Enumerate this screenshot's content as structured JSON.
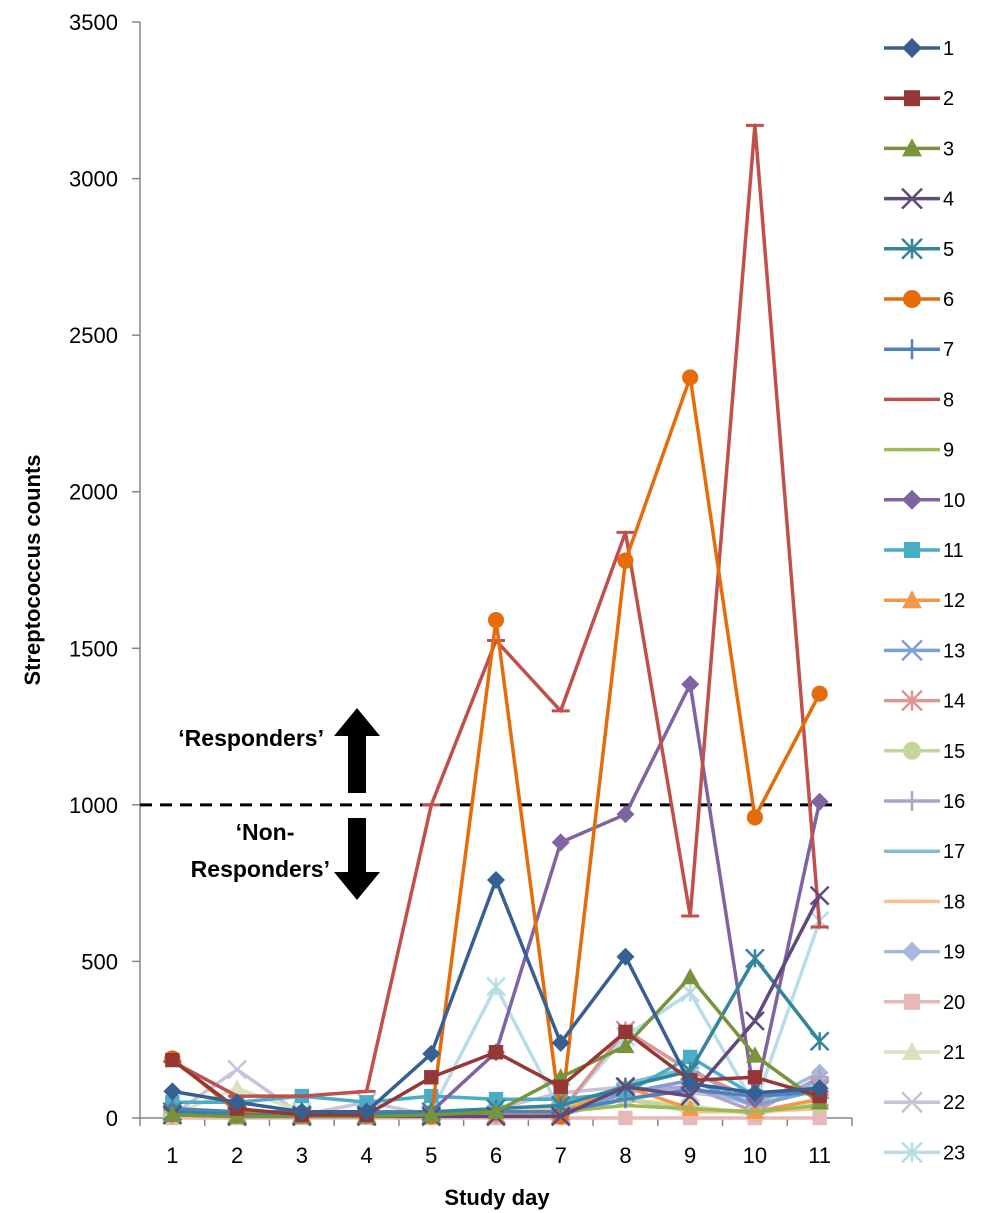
{
  "chart_data": {
    "type": "line",
    "xlabel": "Study day",
    "ylabel": "Streptococcus counts",
    "x": [
      1,
      2,
      3,
      4,
      5,
      6,
      7,
      8,
      9,
      10,
      11
    ],
    "yticks": [
      0,
      500,
      1000,
      1500,
      2000,
      2500,
      3000,
      3500
    ],
    "ylim": [
      0,
      3500
    ],
    "grid": false,
    "legend_position": "right",
    "threshold": {
      "value": 1000,
      "style": "dashed"
    },
    "annotations": {
      "responders": "‘Responders’",
      "non_responders_line1": "‘Non-",
      "non_responders_line2": "Responders’"
    },
    "series": [
      {
        "name": "1",
        "color": "#376092",
        "marker": "diamond",
        "values": [
          85,
          50,
          20,
          20,
          205,
          760,
          240,
          515,
          110,
          80,
          95
        ]
      },
      {
        "name": "2",
        "color": "#953735",
        "marker": "square",
        "values": [
          185,
          30,
          10,
          10,
          130,
          210,
          100,
          275,
          120,
          130,
          70
        ]
      },
      {
        "name": "3",
        "color": "#77933C",
        "marker": "triangle",
        "values": [
          10,
          5,
          5,
          5,
          10,
          20,
          130,
          230,
          450,
          200,
          50
        ]
      },
      {
        "name": "4",
        "color": "#604A7B",
        "marker": "x",
        "values": [
          10,
          5,
          5,
          5,
          5,
          5,
          5,
          100,
          70,
          310,
          710
        ]
      },
      {
        "name": "5",
        "color": "#31859C",
        "marker": "star",
        "values": [
          20,
          10,
          10,
          10,
          20,
          30,
          40,
          100,
          150,
          510,
          245
        ]
      },
      {
        "name": "6",
        "color": "#E46C0A",
        "marker": "circle",
        "values": [
          190,
          20,
          10,
          10,
          5,
          1590,
          5,
          1780,
          2365,
          960,
          1355
        ]
      },
      {
        "name": "7",
        "color": "#4F81BD",
        "marker": "plus",
        "values": [
          30,
          20,
          20,
          20,
          20,
          20,
          20,
          60,
          90,
          70,
          85
        ]
      },
      {
        "name": "8",
        "color": "#C0504D",
        "marker": "dash",
        "values": [
          180,
          70,
          70,
          85,
          1000,
          1525,
          1300,
          1870,
          645,
          3170,
          610
        ]
      },
      {
        "name": "9",
        "color": "#9BBB59",
        "marker": "dash",
        "values": [
          20,
          20,
          20,
          20,
          20,
          20,
          20,
          40,
          30,
          20,
          40
        ]
      },
      {
        "name": "10",
        "color": "#8064A2",
        "marker": "diamond",
        "values": [
          25,
          20,
          20,
          20,
          20,
          210,
          880,
          970,
          1385,
          60,
          1010
        ]
      },
      {
        "name": "11",
        "color": "#4BACC6",
        "marker": "square",
        "values": [
          50,
          50,
          70,
          50,
          70,
          60,
          60,
          80,
          195,
          70,
          80
        ]
      },
      {
        "name": "12",
        "color": "#F79646",
        "marker": "triangle",
        "values": [
          10,
          10,
          10,
          10,
          10,
          10,
          20,
          100,
          30,
          20,
          60
        ]
      },
      {
        "name": "13",
        "color": "#7F9FD3",
        "marker": "x",
        "values": [
          10,
          10,
          10,
          10,
          10,
          10,
          10,
          80,
          120,
          40,
          90
        ]
      },
      {
        "name": "14",
        "color": "#D99694",
        "marker": "star",
        "values": [
          10,
          10,
          10,
          10,
          10,
          10,
          20,
          280,
          150,
          60,
          100
        ]
      },
      {
        "name": "15",
        "color": "#C3D69B",
        "marker": "circle",
        "values": [
          10,
          10,
          10,
          10,
          10,
          30,
          40,
          60,
          30,
          20,
          40
        ]
      },
      {
        "name": "16",
        "color": "#B3A2C7",
        "marker": "plus",
        "values": [
          10,
          10,
          10,
          10,
          10,
          10,
          10,
          90,
          100,
          20,
          130
        ]
      },
      {
        "name": "17",
        "color": "#7FBFD4",
        "marker": "dash",
        "values": [
          10,
          10,
          10,
          10,
          10,
          10,
          10,
          110,
          160,
          30,
          120
        ]
      },
      {
        "name": "18",
        "color": "#FAC090",
        "marker": "dash",
        "values": [
          5,
          5,
          5,
          5,
          5,
          10,
          30,
          60,
          20,
          20,
          30
        ]
      },
      {
        "name": "19",
        "color": "#A6B9DD",
        "marker": "diamond",
        "values": [
          10,
          10,
          10,
          10,
          10,
          10,
          10,
          60,
          100,
          40,
          145
        ]
      },
      {
        "name": "20",
        "color": "#E6B9B8",
        "marker": "square",
        "values": [
          0,
          0,
          0,
          0,
          0,
          0,
          0,
          0,
          0,
          0,
          0
        ]
      },
      {
        "name": "21",
        "color": "#D7E4BD",
        "marker": "triangle",
        "values": [
          10,
          95,
          20,
          20,
          20,
          20,
          40,
          60,
          40,
          10,
          50
        ]
      },
      {
        "name": "22",
        "color": "#CCC1DA",
        "marker": "x",
        "values": [
          10,
          155,
          10,
          50,
          10,
          30,
          80,
          100,
          80,
          60,
          100
        ]
      },
      {
        "name": "23",
        "color": "#B7DEE8",
        "marker": "star",
        "values": [
          10,
          20,
          20,
          20,
          20,
          420,
          20,
          260,
          400,
          40,
          630
        ]
      }
    ]
  }
}
